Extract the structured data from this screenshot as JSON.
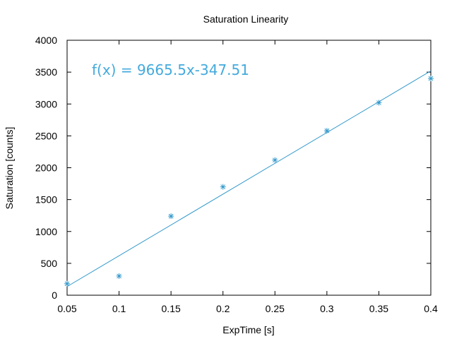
{
  "chart_data": {
    "type": "scatter",
    "title": "Saturation Linearity",
    "xlabel": "ExpTime [s]",
    "ylabel": "Saturation [counts]",
    "xlim": [
      0.05,
      0.4
    ],
    "ylim": [
      0,
      4000
    ],
    "x_ticks": [
      0.05,
      0.1,
      0.15,
      0.2,
      0.25,
      0.3,
      0.35,
      0.4
    ],
    "x_tick_labels": [
      "0.05",
      "0.1",
      "0.15",
      "0.2",
      "0.25",
      "0.3",
      "0.35",
      "0.4"
    ],
    "y_ticks": [
      0,
      500,
      1000,
      1500,
      2000,
      2500,
      3000,
      3500,
      4000
    ],
    "y_tick_labels": [
      "0",
      "500",
      "1000",
      "1500",
      "2000",
      "2500",
      "3000",
      "3500",
      "4000"
    ],
    "grid": false,
    "series": [
      {
        "color": "#3399cc",
        "marker": "asterisk",
        "x": [
          0.05,
          0.1,
          0.15,
          0.2,
          0.25,
          0.3,
          0.35,
          0.4
        ],
        "y": [
          180,
          300,
          1240,
          1700,
          2120,
          2580,
          3020,
          3400
        ]
      }
    ],
    "fit": {
      "slope": 9665.5,
      "intercept": -347.51,
      "color": "#3399cc",
      "label": "f(x) = 9665.5x-347.51",
      "label_color": "#44aadd"
    }
  }
}
